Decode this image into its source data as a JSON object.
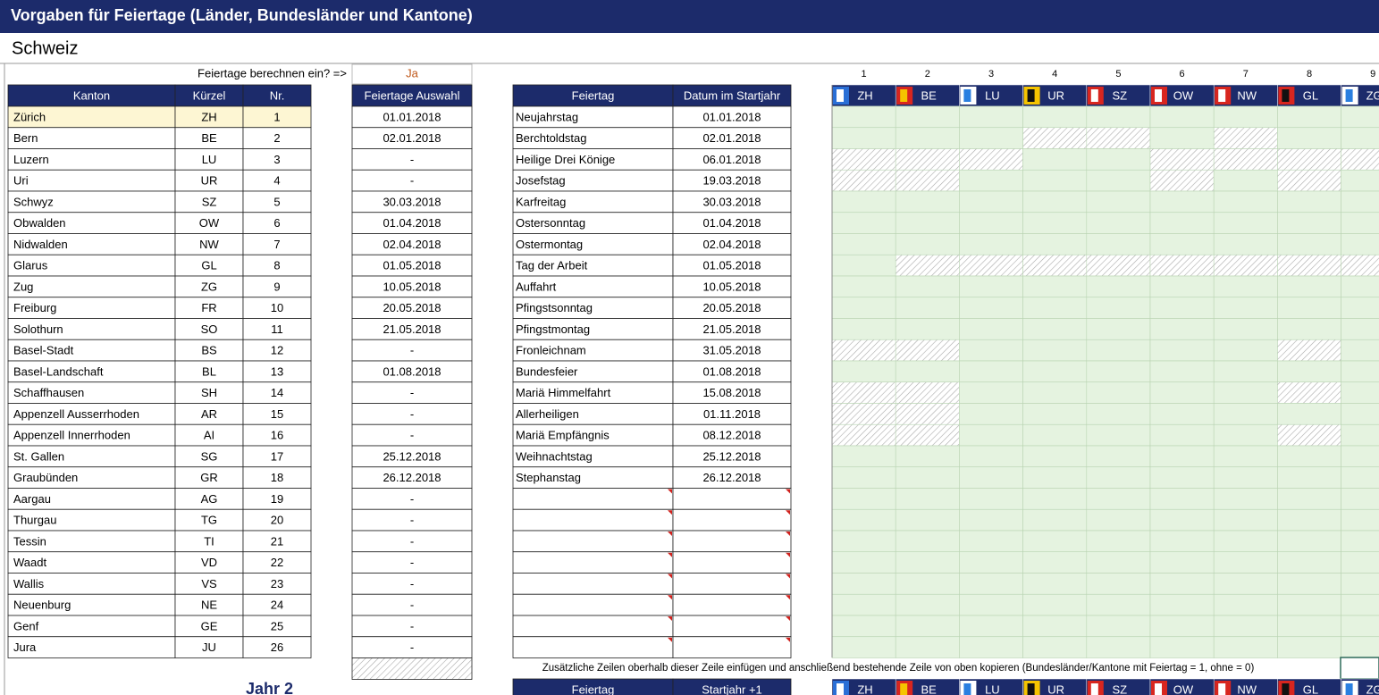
{
  "header": {
    "title": "Vorgaben für Feiertage  (Länder, Bundesländer und Kantone)",
    "country": "Schweiz"
  },
  "calc_prompt": {
    "label": "Feiertage berechnen ein? =>",
    "value": "Ja"
  },
  "cantons_table": {
    "columns": [
      "Kanton",
      "Kürzel",
      "Nr."
    ],
    "rows": [
      [
        "Zürich",
        "ZH",
        1
      ],
      [
        "Bern",
        "BE",
        2
      ],
      [
        "Luzern",
        "LU",
        3
      ],
      [
        "Uri",
        "UR",
        4
      ],
      [
        "Schwyz",
        "SZ",
        5
      ],
      [
        "Obwalden",
        "OW",
        6
      ],
      [
        "Nidwalden",
        "NW",
        7
      ],
      [
        "Glarus",
        "GL",
        8
      ],
      [
        "Zug",
        "ZG",
        9
      ],
      [
        "Freiburg",
        "FR",
        10
      ],
      [
        "Solothurn",
        "SO",
        11
      ],
      [
        "Basel-Stadt",
        "BS",
        12
      ],
      [
        "Basel-Landschaft",
        "BL",
        13
      ],
      [
        "Schaffhausen",
        "SH",
        14
      ],
      [
        "Appenzell Ausserrhoden",
        "AR",
        15
      ],
      [
        "Appenzell Innerrhoden",
        "AI",
        16
      ],
      [
        "St. Gallen",
        "SG",
        17
      ],
      [
        "Graubünden",
        "GR",
        18
      ],
      [
        "Aargau",
        "AG",
        19
      ],
      [
        "Thurgau",
        "TG",
        20
      ],
      [
        "Tessin",
        "TI",
        21
      ],
      [
        "Waadt",
        "VD",
        22
      ],
      [
        "Wallis",
        "VS",
        23
      ],
      [
        "Neuenburg",
        "NE",
        24
      ],
      [
        "Genf",
        "GE",
        25
      ],
      [
        "Jura",
        "JU",
        26
      ]
    ]
  },
  "selection": {
    "header": "Feiertage Auswahl",
    "values": [
      "01.01.2018",
      "02.01.2018",
      "-",
      "-",
      "30.03.2018",
      "01.04.2018",
      "02.04.2018",
      "01.05.2018",
      "10.05.2018",
      "20.05.2018",
      "21.05.2018",
      "-",
      "01.08.2018",
      "-",
      "-",
      "-",
      "25.12.2018",
      "26.12.2018",
      "-",
      "-",
      "-",
      "-",
      "-",
      "-",
      "-",
      "-"
    ]
  },
  "holidays": {
    "columns": [
      "Feiertag",
      "Datum im Startjahr"
    ],
    "rows": [
      [
        "Neujahrstag",
        "01.01.2018"
      ],
      [
        "Berchtoldstag",
        "02.01.2018"
      ],
      [
        "Heilige Drei Könige",
        "06.01.2018"
      ],
      [
        "Josefstag",
        "19.03.2018"
      ],
      [
        "Karfreitag",
        "30.03.2018"
      ],
      [
        "Ostersonntag",
        "01.04.2018"
      ],
      [
        "Ostermontag",
        "02.04.2018"
      ],
      [
        "Tag der Arbeit",
        "01.05.2018"
      ],
      [
        "Auffahrt",
        "10.05.2018"
      ],
      [
        "Pfingstsonntag",
        "20.05.2018"
      ],
      [
        "Pfingstmontag",
        "21.05.2018"
      ],
      [
        "Fronleichnam",
        "31.05.2018"
      ],
      [
        "Bundesfeier",
        "01.08.2018"
      ],
      [
        "Mariä Himmelfahrt",
        "15.08.2018"
      ],
      [
        "Allerheiligen",
        "01.11.2018"
      ],
      [
        "Mariä Empfängnis",
        "08.12.2018"
      ],
      [
        "Weihnachtstag",
        "25.12.2018"
      ],
      [
        "Stephanstag",
        "26.12.2018"
      ]
    ]
  },
  "matrix": {
    "column_numbers": [
      1,
      2,
      3,
      4,
      5,
      6,
      7,
      8,
      9
    ],
    "codes": [
      "ZH",
      "BE",
      "LU",
      "UR",
      "SZ",
      "OW",
      "NW",
      "GL",
      "ZG"
    ],
    "rows": [
      [
        1,
        1,
        1,
        1,
        1,
        1,
        1,
        1,
        1
      ],
      [
        1,
        1,
        1,
        0,
        0,
        1,
        0,
        1,
        1
      ],
      [
        0,
        0,
        0,
        1,
        1,
        0,
        0,
        0,
        0
      ],
      [
        0,
        0,
        1,
        1,
        1,
        0,
        1,
        0,
        1
      ],
      [
        1,
        1,
        1,
        1,
        1,
        1,
        1,
        1,
        1
      ],
      [
        1,
        1,
        1,
        1,
        1,
        1,
        1,
        1,
        1
      ],
      [
        1,
        1,
        1,
        1,
        1,
        1,
        1,
        1,
        1
      ],
      [
        1,
        0,
        0,
        0,
        0,
        0,
        0,
        0,
        0
      ],
      [
        1,
        1,
        1,
        1,
        1,
        1,
        1,
        1,
        1
      ],
      [
        1,
        1,
        1,
        1,
        1,
        1,
        1,
        1,
        1
      ],
      [
        1,
        1,
        1,
        1,
        1,
        1,
        1,
        1,
        1
      ],
      [
        0,
        0,
        1,
        1,
        1,
        1,
        1,
        0,
        1
      ],
      [
        1,
        1,
        1,
        1,
        1,
        1,
        1,
        1,
        1
      ],
      [
        0,
        0,
        1,
        1,
        1,
        1,
        1,
        0,
        1
      ],
      [
        0,
        0,
        1,
        1,
        1,
        1,
        1,
        1,
        1
      ],
      [
        0,
        0,
        1,
        1,
        1,
        1,
        1,
        0,
        1
      ],
      [
        1,
        1,
        1,
        1,
        1,
        1,
        1,
        1,
        1
      ],
      [
        1,
        1,
        1,
        1,
        1,
        1,
        1,
        1,
        1
      ]
    ]
  },
  "note": "Zusätzliche Zeilen oberhalb dieser Zeile einfügen und anschließend bestehende Zeile von oben kopieren (Bundesländer/Kantone mit Feiertag = 1, ohne = 0)",
  "year2": {
    "title": "Jahr 2",
    "columns": [
      "Feiertag",
      "Startjahr +1"
    ]
  }
}
